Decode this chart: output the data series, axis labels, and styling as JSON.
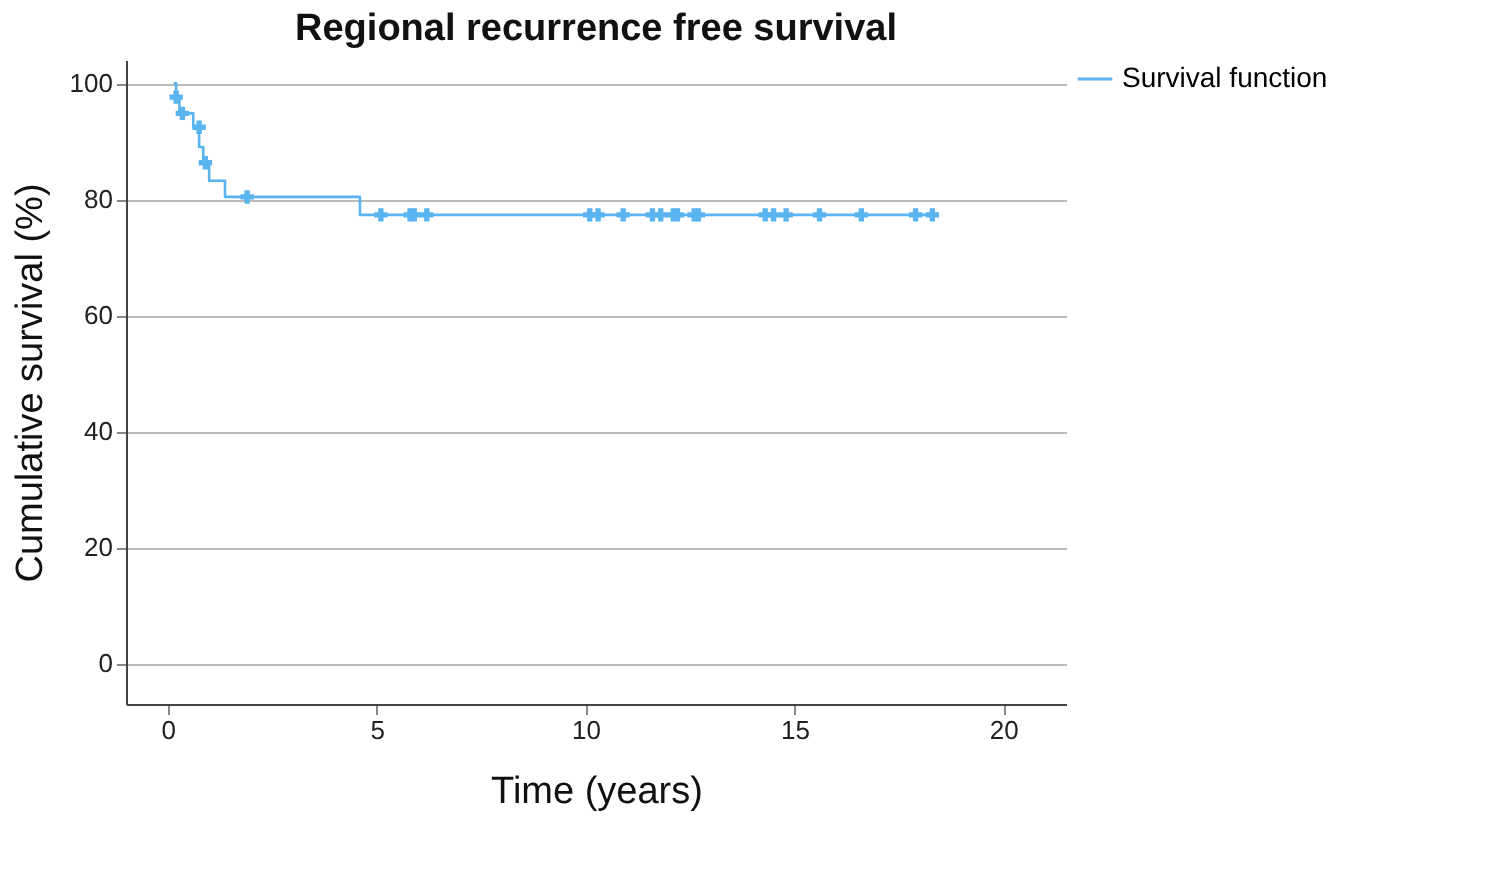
{
  "chart_data": {
    "type": "step",
    "title": "Regional recurrence free survival",
    "xlabel": "Time (years)",
    "ylabel": "Cumulative survival (%)",
    "xlim": [
      -1,
      21.5
    ],
    "ylim": [
      -7,
      104
    ],
    "xticks": [
      0,
      5,
      10,
      15,
      20
    ],
    "yticks": [
      0,
      20,
      40,
      60,
      80,
      100
    ],
    "grid": "y",
    "legend": "top right",
    "series": [
      {
        "name": "Survival function",
        "color": "#5ab4f0",
        "marker": "none",
        "x": [
          0.14,
          0.2,
          0.28,
          0.61,
          0.75,
          0.85,
          0.99,
          1.37,
          4.6,
          18.3
        ],
        "values": [
          100,
          97.6,
          94.8,
          92.4,
          89,
          86.3,
          83.2,
          80.4,
          77.3,
          77.3
        ]
      },
      {
        "type": "scatter",
        "color": "#5ab4f0",
        "marker": "cross",
        "x": [
          0.2,
          0.35,
          0.75,
          0.9,
          1.9,
          5.1,
          5.8,
          5.9,
          6.2,
          10.1,
          10.3,
          10.9,
          11.6,
          11.8,
          12.1,
          12.2,
          12.6,
          12.7,
          14.3,
          14.5,
          14.8,
          15.6,
          16.6,
          17.9,
          18.3
        ],
        "values": [
          97.6,
          94.8,
          92.4,
          86.3,
          80.4,
          77.3,
          77.3,
          77.3,
          77.3,
          77.3,
          77.3,
          77.3,
          77.3,
          77.3,
          77.3,
          77.3,
          77.3,
          77.3,
          77.3,
          77.3,
          77.3,
          77.3,
          77.3,
          77.3,
          77.3
        ]
      }
    ]
  }
}
